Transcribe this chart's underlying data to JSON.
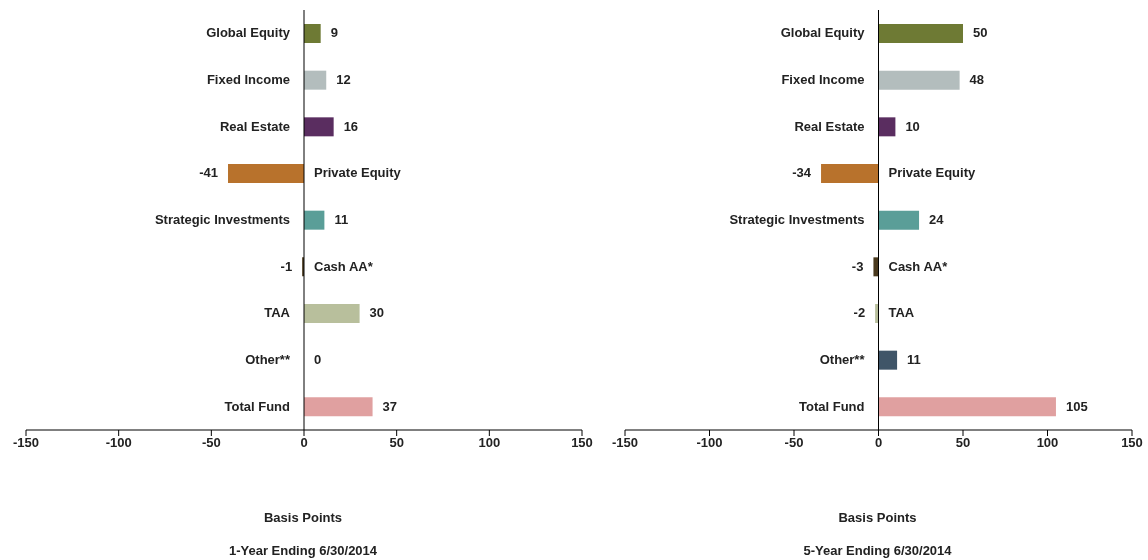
{
  "chart_data": [
    {
      "type": "bar",
      "orientation": "horizontal",
      "title": "1-Year Ending 6/30/2014",
      "xlabel": "Basis Points",
      "categories": [
        "Global Equity",
        "Fixed Income",
        "Real Estate",
        "Private Equity",
        "Strategic Investments",
        "Cash AA*",
        "TAA",
        "Other**",
        "Total Fund"
      ],
      "values": [
        9,
        12,
        16,
        -41,
        11,
        -1,
        30,
        0,
        37
      ],
      "colors": [
        "#6e7a34",
        "#b3bdbd",
        "#5a2d60",
        "#b8722c",
        "#5a9e98",
        "#4a3a1e",
        "#b8bf9c",
        "#3f5568",
        "#e0a0a0"
      ],
      "xlim": [
        -150,
        150
      ],
      "xticks": [
        -150,
        -100,
        -50,
        0,
        50,
        100,
        150
      ],
      "data_labels": true,
      "grid": false,
      "legend": false
    },
    {
      "type": "bar",
      "orientation": "horizontal",
      "title": "5-Year Ending 6/30/2014",
      "xlabel": "Basis Points",
      "categories": [
        "Global Equity",
        "Fixed Income",
        "Real Estate",
        "Private Equity",
        "Strategic Investments",
        "Cash AA*",
        "TAA",
        "Other**",
        "Total Fund"
      ],
      "values": [
        50,
        48,
        10,
        -34,
        24,
        -3,
        -2,
        11,
        105
      ],
      "colors": [
        "#6e7a34",
        "#b3bdbd",
        "#5a2d60",
        "#b8722c",
        "#5a9e98",
        "#4a3a1e",
        "#b8bf9c",
        "#3f5568",
        "#e0a0a0"
      ],
      "xlim": [
        -150,
        150
      ],
      "xticks": [
        -150,
        -100,
        -50,
        0,
        50,
        100,
        150
      ],
      "data_labels": true,
      "grid": false,
      "legend": false
    }
  ]
}
